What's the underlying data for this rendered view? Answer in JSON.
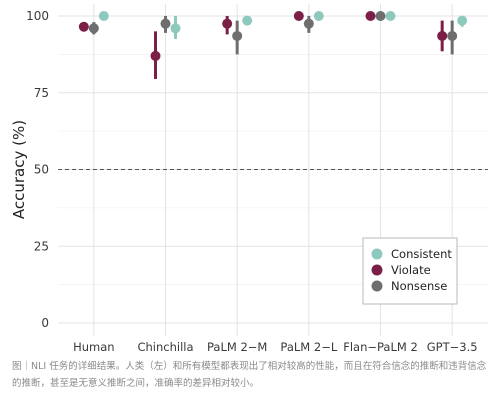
{
  "chart_data": {
    "type": "scatter",
    "title": "",
    "xlabel": "",
    "ylabel": "Accuracy (%)",
    "categories": [
      "Human",
      "Chinchilla",
      "PaLM 2−M",
      "PaLM 2−L",
      "Flan−PaLM 2",
      "GPT−3.5"
    ],
    "ylim": [
      0,
      100
    ],
    "yticks": [
      0,
      25,
      50,
      75,
      100
    ],
    "reference_line": {
      "y": 50,
      "style": "dashed"
    },
    "grid": true,
    "legend_position": "bottom-right",
    "series": [
      {
        "name": "Consistent",
        "color": "#8ec9bd",
        "values": [
          100,
          96,
          98.5,
          100,
          100,
          98.5
        ],
        "ci_low": [
          100,
          92.5,
          97,
          100,
          100,
          96.5
        ],
        "ci_high": [
          100,
          100,
          100,
          100,
          100,
          100
        ]
      },
      {
        "name": "Violate",
        "color": "#7b1f47",
        "values": [
          96.5,
          87,
          97.5,
          100,
          100,
          93.5
        ],
        "ci_low": [
          95.5,
          79.5,
          94,
          100,
          100,
          88.5
        ],
        "ci_high": [
          97.5,
          95,
          100,
          100,
          100,
          98.5
        ]
      },
      {
        "name": "Nonsense",
        "color": "#6e6e6e",
        "values": [
          96,
          97.5,
          93.5,
          97.5,
          100,
          93.5
        ],
        "ci_low": [
          94,
          94.5,
          87.5,
          94.5,
          100,
          87.5
        ],
        "ci_high": [
          98,
          100,
          98.5,
          100,
          100,
          98.5
        ]
      }
    ]
  },
  "caption": "图｜NLI 任务的详细结果。人类（左）和所有模型都表现出了相对较高的性能，而且在符合信念的推断和违背信念的推断，甚至是无意义推断之间，准确率的差异相对较小。"
}
